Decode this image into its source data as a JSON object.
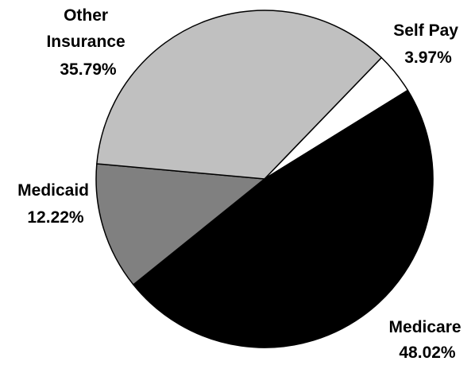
{
  "chart_data": {
    "type": "pie",
    "slices": [
      {
        "name": "Self Pay",
        "value": 3.97,
        "value_label": "3.97%",
        "label_lines": [
          "Self Pay"
        ],
        "color": "#ffffff"
      },
      {
        "name": "Medicare",
        "value": 48.02,
        "value_label": "48.02%",
        "label_lines": [
          "Medicare"
        ],
        "color": "#000000"
      },
      {
        "name": "Medicaid",
        "value": 12.22,
        "value_label": "12.22%",
        "label_lines": [
          "Medicaid"
        ],
        "color": "#808080"
      },
      {
        "name": "Other Insurance",
        "value": 35.79,
        "value_label": "35.79%",
        "label_lines": [
          "Other",
          "Insurance"
        ],
        "color": "#c0c0c0"
      }
    ],
    "start_angle_deg": 44,
    "direction": "clockwise",
    "outline_color": "#000000"
  }
}
